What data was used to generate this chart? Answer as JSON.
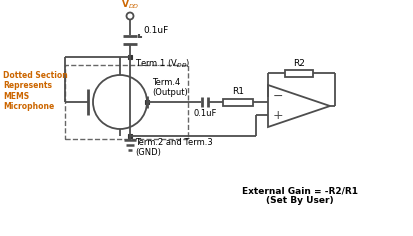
{
  "bg_color": "#ffffff",
  "line_color": "#4d4d4d",
  "dashed_color": "#666666",
  "label_color": "#cc6600",
  "text_color": "#000000",
  "figsize": [
    4.14,
    2.36
  ],
  "dpi": 100,
  "vdd_label": "V$_{DD}$",
  "cap1_label": "0.1uF",
  "term1_label": "Term.1 (V$_{DD}$)",
  "term4_label": "Term.4\n(Output)",
  "term23_label": "Term.2 and Term.3\n(GND)",
  "r1_label": "R1",
  "r2_label": "R2",
  "cap2_label": "0.1uF",
  "dot_section_label": "Dotted Section\nRepresents\nMEMS\nMicrophone",
  "ext_gain_label": "External Gain = -R2/R1\n(Set By User)",
  "node_color": "#333333"
}
